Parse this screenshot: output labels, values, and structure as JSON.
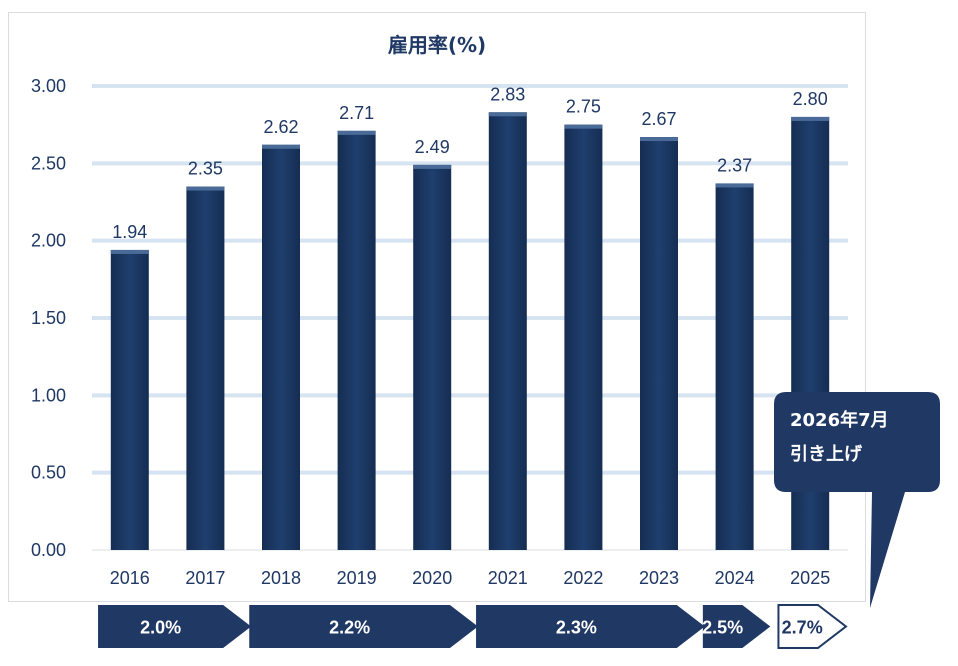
{
  "chart_data": {
    "type": "bar",
    "title": "雇用率(%)",
    "categories": [
      "2016",
      "2017",
      "2018",
      "2019",
      "2020",
      "2021",
      "2022",
      "2023",
      "2024",
      "2025"
    ],
    "values": [
      1.94,
      2.35,
      2.62,
      2.71,
      2.49,
      2.83,
      2.75,
      2.67,
      2.37,
      2.8
    ],
    "data_labels": [
      "1.94",
      "2.35",
      "2.62",
      "2.71",
      "2.49",
      "2.83",
      "2.75",
      "2.67",
      "2.37",
      "2.80"
    ],
    "yticks": [
      "0.00",
      "0.50",
      "1.00",
      "1.50",
      "2.00",
      "2.50",
      "3.00"
    ],
    "ylim": [
      0,
      3.0
    ],
    "grid": true,
    "bar_color": "#1f3f6e",
    "gridline_color": "#d6e3f1"
  },
  "rate_arrows": [
    {
      "label": "2.0%",
      "from": 0,
      "to": 1,
      "style": "filled"
    },
    {
      "label": "2.2%",
      "from": 2,
      "to": 4,
      "style": "filled"
    },
    {
      "label": "2.3%",
      "from": 5,
      "to": 7,
      "style": "filled"
    },
    {
      "label": "2.5%",
      "from": 8,
      "to": 8,
      "style": "filled"
    },
    {
      "label": "2.7%",
      "from": 9,
      "to": 9,
      "style": "outline"
    }
  ],
  "callout": {
    "line1": "2026年7月",
    "line2": "引き上げ",
    "color": "#1f3864"
  }
}
